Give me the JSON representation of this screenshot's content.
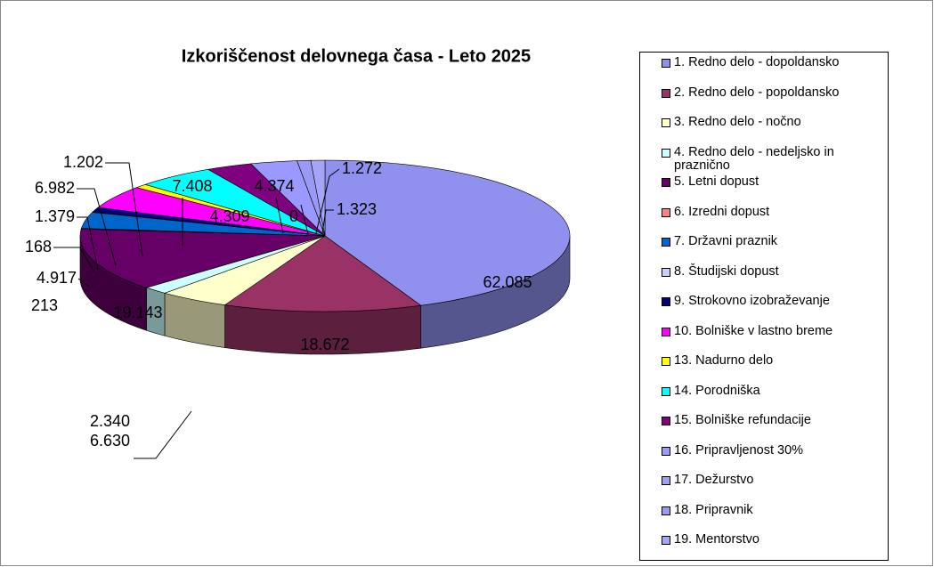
{
  "chart_data": {
    "type": "pie3d",
    "title": "Izkoriščenost delovnega časa - Leto 2025",
    "categories": [
      "1.  Redno delo - dopoldansko",
      "2.  Redno delo - popoldansko",
      "3.  Redno delo - nočno",
      "4.  Redno delo - nedeljsko in praznično",
      "5.  Letni dopust",
      "6.  Izredni dopust",
      "7.  Državni praznik",
      "8.  Študijski dopust",
      "9.  Strokovno izobraževanje",
      "10.  Bolniške v lastno breme",
      "13.  Nadurno delo",
      "14.  Porodniška",
      "15.  Bolniške refundacije",
      "16.  Pripravljenost 30%",
      "17.  Dežurstvo",
      "18.  Pripravnik",
      "19.  Mentorstvo"
    ],
    "values": [
      62085,
      18672,
      6630,
      2340,
      19143,
      213,
      4917,
      168,
      1379,
      6982,
      1202,
      7408,
      4309,
      4374,
      0,
      1272,
      1323
    ],
    "value_labels": [
      "62.085",
      "18.672",
      "6.630",
      "2.340",
      "19.143",
      "213",
      "4.917",
      "168",
      "1.379",
      "6.982",
      "1.202",
      "7.408",
      "4.309",
      "4.374",
      "0",
      "1.272",
      "1.323"
    ],
    "colors": [
      "#9090ee",
      "#993366",
      "#ffffcc",
      "#ccffff",
      "#660066",
      "#ff8080",
      "#0066cc",
      "#ccccff",
      "#000080",
      "#ff00ff",
      "#ffff00",
      "#00ffff",
      "#800080",
      "#9999ff",
      "#a0a0f0",
      "#9a9af5",
      "#a5a5f8"
    ],
    "legend": "right"
  }
}
